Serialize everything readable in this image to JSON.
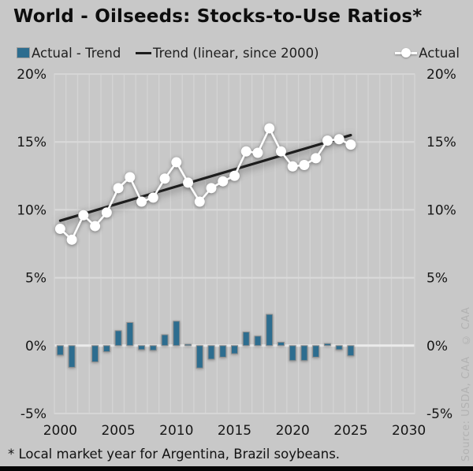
{
  "title": "World - Oilseeds: Stocks-to-Use Ratios*",
  "legend": {
    "items": [
      {
        "label": "Actual - Trend",
        "marker": "bar-square",
        "color": "#2d6d8f"
      },
      {
        "label": "Trend (linear, since 2000)",
        "marker": "line-dash",
        "color": "#1d1d1d"
      },
      {
        "label": "Actual",
        "marker": "circle-on-line",
        "color": "#ffffff"
      }
    ]
  },
  "footnote": "* Local market year for Argentina, Brazil soybeans.",
  "source_text": "Source: USDA, CAA   © CAA",
  "colors": {
    "background": "#c8c8c8",
    "bar_fill": "#2d6d8f",
    "bar_outline": "#8f8f8f",
    "trend_line": "#1d1d1d",
    "actual_line": "#ffffff",
    "gridline_vertical": "#d4d4d4",
    "gridline_horizontal": "#dadada",
    "zero_line": "#ebebeb",
    "axis_text": "#161616",
    "source_text_color": "#b2b2b2",
    "bottom_bar": "#050505"
  },
  "chart_data": {
    "type": "combo",
    "x_axis": {
      "kind": "category-years",
      "range": [
        2000,
        2030
      ],
      "tick_labels": [
        "2000",
        "2005",
        "2010",
        "2015",
        "2020",
        "2025",
        "2030"
      ],
      "tick_years": [
        2000,
        2005,
        2010,
        2015,
        2020,
        2025,
        2030
      ]
    },
    "y_axis": {
      "range": [
        -5,
        20
      ],
      "unit": "%",
      "tick_values": [
        20,
        15,
        10,
        5,
        0,
        -5
      ],
      "tick_labels": [
        "20%",
        "15%",
        "10%",
        "5%",
        "0%",
        "-5%"
      ],
      "shown_on_both_sides": true,
      "grid": true
    },
    "years": [
      2000,
      2001,
      2002,
      2003,
      2004,
      2005,
      2006,
      2007,
      2008,
      2009,
      2010,
      2011,
      2012,
      2013,
      2014,
      2015,
      2016,
      2017,
      2018,
      2019,
      2020,
      2021,
      2022,
      2023,
      2024,
      2025
    ],
    "series": [
      {
        "name": "Actual - Trend",
        "type": "bar",
        "color": "#2d6d8f",
        "values": [
          -0.7,
          -1.6,
          0.0,
          -1.2,
          -0.45,
          1.1,
          1.7,
          -0.3,
          -0.35,
          0.8,
          1.8,
          0.1,
          -1.65,
          -1.0,
          -0.85,
          -0.6,
          1.0,
          0.7,
          2.3,
          0.25,
          -1.1,
          -1.1,
          -0.85,
          0.15,
          -0.3,
          -0.75
        ]
      },
      {
        "name": "Trend (linear, since 2000)",
        "type": "line",
        "color": "#1d1d1d",
        "x": [
          2000,
          2025
        ],
        "values": [
          9.2,
          15.5
        ]
      },
      {
        "name": "Actual",
        "type": "line-markers",
        "color": "#ffffff",
        "values": [
          8.6,
          7.8,
          9.6,
          8.8,
          9.8,
          11.6,
          12.4,
          10.6,
          10.9,
          12.3,
          13.5,
          12.0,
          10.6,
          11.6,
          12.1,
          12.5,
          14.3,
          14.2,
          16.0,
          14.3,
          13.2,
          13.3,
          13.8,
          15.1,
          15.2,
          14.8
        ]
      }
    ]
  }
}
